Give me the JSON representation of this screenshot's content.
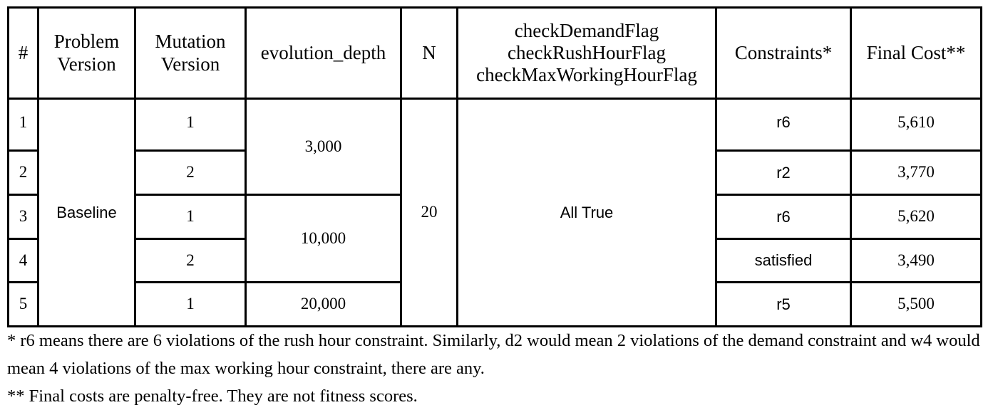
{
  "table": {
    "headers": {
      "index": "#",
      "problem_version": [
        "Problem",
        "Version"
      ],
      "mutation_version": [
        "Mutation",
        "Version"
      ],
      "evolution_depth": "evolution_depth",
      "n": "N",
      "flags": [
        "checkDemandFlag",
        "checkRushHourFlag",
        "checkMaxWorkingHourFlag"
      ],
      "constraints": "Constraints*",
      "final_cost": "Final Cost**"
    },
    "problem_version": "Baseline",
    "n": "20",
    "flags": "All True",
    "evolution_depths": [
      "3,000",
      "10,000",
      "20,000"
    ],
    "rows": [
      {
        "index": "1",
        "mutation_version": "1",
        "constraints": "r6",
        "final_cost": "5,610"
      },
      {
        "index": "2",
        "mutation_version": "2",
        "constraints": "r2",
        "final_cost": "3,770"
      },
      {
        "index": "3",
        "mutation_version": "1",
        "constraints": "r6",
        "final_cost": "5,620"
      },
      {
        "index": "4",
        "mutation_version": "2",
        "constraints": "satisfied",
        "final_cost": "3,490"
      },
      {
        "index": "5",
        "mutation_version": "1",
        "constraints": "r5",
        "final_cost": "5,500"
      }
    ]
  },
  "notes": [
    "* r6 means there are 6 violations of the rush hour constraint. Similarly, d2 would mean 2 violations of the demand constraint and w4 would mean 4 violations of the max working hour constraint, there are any.",
    "** Final costs are penalty-free. They are not fitness scores."
  ]
}
